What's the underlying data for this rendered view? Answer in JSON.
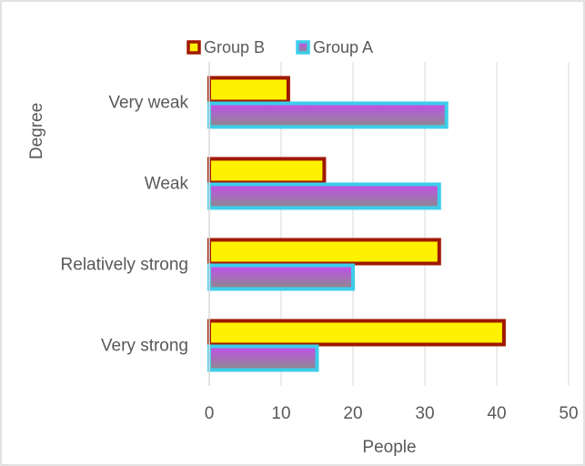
{
  "chart_data": {
    "type": "bar",
    "orientation": "horizontal",
    "title": "",
    "xlabel": "People",
    "ylabel": "Degree",
    "categories": [
      "Very weak",
      "Weak",
      "Relatively strong",
      "Very strong"
    ],
    "series": [
      {
        "name": "Group B",
        "values": [
          11,
          16,
          32,
          41
        ],
        "fill": "#FFF200",
        "border": "#A01800"
      },
      {
        "name": "Group A",
        "values": [
          33,
          32,
          20,
          15
        ],
        "fill_gradient": [
          "#C44DEE",
          "#8B8B8B"
        ],
        "border": "#3CCDEA"
      }
    ],
    "xlim": [
      0,
      50
    ],
    "xticks": [
      "0",
      "10",
      "20",
      "30",
      "40",
      "50"
    ],
    "grid": "vertical",
    "legend_position": "top",
    "legend_order": [
      "Group B",
      "Group A"
    ]
  }
}
